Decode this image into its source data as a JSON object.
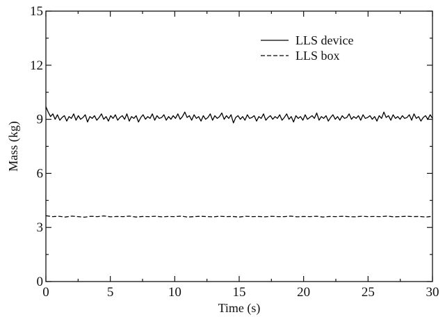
{
  "chart_data": {
    "type": "line",
    "title": "",
    "xlabel": "Time (s)",
    "ylabel": "Mass (kg)",
    "xlim": [
      0,
      30
    ],
    "ylim": [
      0,
      15
    ],
    "xticks": [
      0,
      5,
      10,
      15,
      20,
      25,
      30
    ],
    "yticks": [
      0,
      3,
      6,
      9,
      12,
      15
    ],
    "grid": false,
    "legend_position": "top-right",
    "series": [
      {
        "name": "LLS device",
        "style": "solid",
        "color": "#000000",
        "x_start": 0,
        "x_end": 30,
        "values": [
          9.7,
          9.4,
          9.15,
          9.3,
          9.0,
          9.25,
          8.95,
          9.1,
          9.2,
          8.9,
          9.15,
          9.05,
          9.3,
          8.95,
          9.2,
          9.0,
          9.1,
          9.25,
          8.85,
          9.15,
          9.05,
          9.2,
          8.95,
          9.1,
          9.3,
          9.0,
          9.15,
          8.9,
          9.2,
          9.05,
          9.25,
          8.95,
          9.1,
          9.2,
          9.0,
          9.3,
          8.9,
          9.15,
          9.05,
          9.2,
          8.85,
          9.1,
          9.25,
          9.0,
          9.15,
          9.05,
          9.3,
          8.95,
          9.2,
          9.05,
          9.1,
          9.25,
          8.95,
          9.15,
          9.0,
          9.2,
          9.05,
          9.3,
          9.0,
          9.15,
          9.4,
          9.1,
          9.2,
          8.95,
          9.25,
          9.05,
          9.15,
          8.9,
          9.2,
          9.0,
          9.1,
          9.3,
          8.95,
          9.2,
          9.05,
          9.15,
          9.35,
          9.0,
          9.2,
          9.05,
          9.25,
          8.8,
          9.1,
          9.2,
          9.0,
          9.15,
          8.95,
          9.25,
          9.05,
          9.1,
          9.2,
          8.9,
          9.15,
          9.05,
          9.3,
          8.95,
          9.1,
          9.2,
          9.0,
          9.15,
          9.05,
          9.25,
          8.95,
          9.1,
          9.3,
          9.0,
          9.15,
          8.85,
          9.2,
          9.05,
          9.15,
          8.95,
          9.25,
          9.0,
          9.1,
          9.2,
          9.05,
          9.35,
          8.95,
          9.15,
          9.05,
          9.2,
          8.9,
          9.1,
          9.25,
          9.0,
          9.15,
          8.95,
          9.2,
          9.05,
          9.1,
          9.3,
          9.0,
          9.15,
          9.05,
          9.2,
          8.95,
          9.25,
          9.05,
          9.1,
          9.2,
          9.0,
          9.15,
          8.9,
          9.2,
          9.05,
          9.4,
          9.1,
          9.2,
          8.95,
          9.25,
          9.05,
          9.15,
          9.0,
          9.2,
          9.05,
          9.1,
          9.25,
          8.95,
          9.3,
          9.05,
          9.15,
          8.9,
          9.1,
          9.2,
          9.0,
          9.25,
          9.05
        ]
      },
      {
        "name": "LLS box",
        "style": "dashed",
        "color": "#000000",
        "x_start": 0,
        "x_end": 30,
        "values": [
          3.65,
          3.6,
          3.62,
          3.58,
          3.63,
          3.6,
          3.57,
          3.62,
          3.6,
          3.64,
          3.59,
          3.61,
          3.6,
          3.63,
          3.58,
          3.61,
          3.6,
          3.62,
          3.59,
          3.61,
          3.6,
          3.63,
          3.58,
          3.6,
          3.62,
          3.6,
          3.59,
          3.62,
          3.6,
          3.61,
          3.58,
          3.62,
          3.6,
          3.61,
          3.59,
          3.62,
          3.6,
          3.6,
          3.63,
          3.59,
          3.61,
          3.6,
          3.62,
          3.58,
          3.61,
          3.6,
          3.62,
          3.6,
          3.59,
          3.62,
          3.6,
          3.61,
          3.6,
          3.63,
          3.59,
          3.6,
          3.62,
          3.6,
          3.61,
          3.58,
          3.62
        ]
      }
    ]
  }
}
